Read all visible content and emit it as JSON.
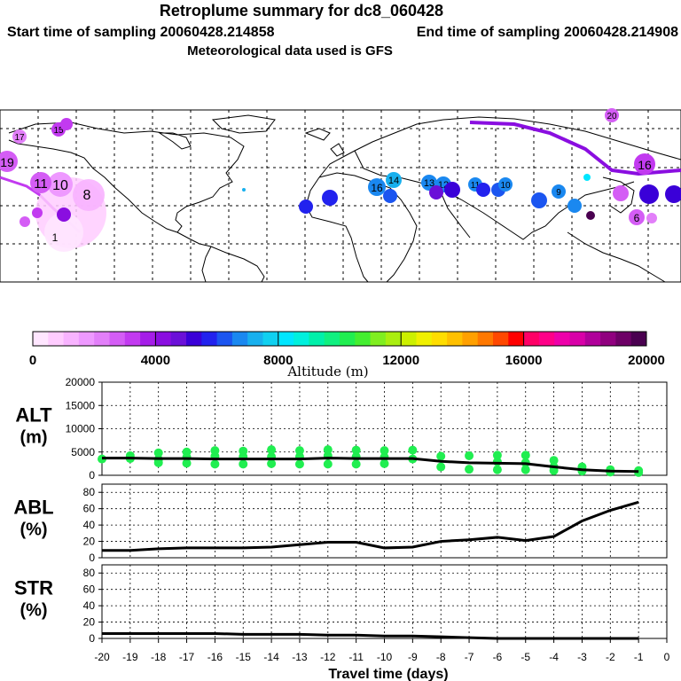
{
  "header": {
    "title": "Retroplume summary for dc8_060428",
    "start_time": "Start time of sampling 20060428.214858",
    "end_time": "End time of sampling 20060428.214908",
    "met_data": "Meteorological data used is GFS"
  },
  "colorbar": {
    "ticks": [
      "0",
      "4000",
      "8000",
      "12000",
      "16000",
      "20000"
    ],
    "label": "Altitude (m)",
    "colors": [
      "#ffe6ff",
      "#ffccff",
      "#f8b3ff",
      "#ee99ff",
      "#e27ff9",
      "#d45df5",
      "#c23af0",
      "#a51de8",
      "#8a0ee0",
      "#6b10d8",
      "#3a00d8",
      "#2222ee",
      "#1b55f0",
      "#1a88f0",
      "#18b0ee",
      "#10d0f0",
      "#00e6ff",
      "#00f0dd",
      "#00f0aa",
      "#10f080",
      "#20ee50",
      "#44ee30",
      "#80ee20",
      "#aaee10",
      "#ccf000",
      "#f0f000",
      "#ffdd00",
      "#ffc000",
      "#ffa000",
      "#ff7800",
      "#ff4800",
      "#ff0000",
      "#ff0066",
      "#ff0088",
      "#ee00aa",
      "#d800a8",
      "#b0009a",
      "#90007f",
      "#6d0066",
      "#4a0050"
    ]
  },
  "map_markers": [
    {
      "label": "19",
      "color": "#d45df5"
    },
    {
      "label": "17",
      "color": "#e27ff9"
    },
    {
      "label": "15",
      "color": "#c23af0"
    },
    {
      "label": "10",
      "color": "#ee99ff"
    },
    {
      "label": "11",
      "color": "#d45df5"
    },
    {
      "label": "8",
      "color": "#f8b3ff"
    },
    {
      "label": "1",
      "color": "#ffccff"
    },
    {
      "label": "16",
      "color": "#1b55f0"
    },
    {
      "label": "14",
      "color": "#1a88f0"
    },
    {
      "label": "13",
      "color": "#1a88f0"
    },
    {
      "label": "12",
      "color": "#1a88f0"
    },
    {
      "label": "11",
      "color": "#1a88f0"
    },
    {
      "label": "10",
      "color": "#1a88f0"
    },
    {
      "label": "9",
      "color": "#1a88f0"
    },
    {
      "label": "20",
      "color": "#d45df5"
    },
    {
      "label": "16",
      "color": "#c23af0"
    },
    {
      "label": "6",
      "color": "#d45df5"
    }
  ],
  "chart_data": [
    {
      "type": "scatter+line",
      "panel": "ALT",
      "ylabel": "ALT\n(m)",
      "xlabel": "Travel time (days)",
      "xlim": [
        -20,
        0
      ],
      "ylim": [
        0,
        20000
      ],
      "yticks": [
        "20000",
        "15000",
        "10000",
        "5000",
        "0"
      ],
      "xticks": [
        "-20",
        "-19",
        "-18",
        "-17",
        "-16",
        "-15",
        "-14",
        "-13",
        "-12",
        "-11",
        "-10",
        "-9",
        "-8",
        "-7",
        "-6",
        "-5",
        "-4",
        "-3",
        "-2",
        "-1",
        "0"
      ],
      "line": {
        "x": [
          -20,
          -19,
          -18,
          -17,
          -16,
          -15,
          -14,
          -13,
          -12,
          -11,
          -10,
          -9,
          -8,
          -7,
          -6,
          -5,
          -4,
          -3,
          -2,
          -1
        ],
        "y": [
          3700,
          3700,
          3600,
          3600,
          3500,
          3500,
          3500,
          3500,
          3700,
          3600,
          3600,
          3600,
          3000,
          2700,
          2600,
          2500,
          1800,
          1200,
          900,
          800
        ]
      },
      "scatter_color": "#20ee50",
      "scatter": [
        [
          -20,
          3500
        ],
        [
          -19,
          4200
        ],
        [
          -19,
          3600
        ],
        [
          -18,
          4800
        ],
        [
          -18,
          3400
        ],
        [
          -18,
          2700
        ],
        [
          -17,
          5000
        ],
        [
          -17,
          3900
        ],
        [
          -17,
          2600
        ],
        [
          -16,
          5300
        ],
        [
          -16,
          4100
        ],
        [
          -16,
          2400
        ],
        [
          -15,
          5200
        ],
        [
          -15,
          4000
        ],
        [
          -15,
          2400
        ],
        [
          -14,
          5500
        ],
        [
          -14,
          4000
        ],
        [
          -14,
          2500
        ],
        [
          -13,
          5300
        ],
        [
          -13,
          4000
        ],
        [
          -13,
          2400
        ],
        [
          -12,
          5500
        ],
        [
          -12,
          4200
        ],
        [
          -12,
          2400
        ],
        [
          -11,
          5400
        ],
        [
          -11,
          4000
        ],
        [
          -11,
          2400
        ],
        [
          -10,
          5300
        ],
        [
          -10,
          3900
        ],
        [
          -10,
          2500
        ],
        [
          -9,
          5400
        ],
        [
          -9,
          3500
        ],
        [
          -8,
          4100
        ],
        [
          -8,
          1800
        ],
        [
          -7,
          4200
        ],
        [
          -7,
          1300
        ],
        [
          -6,
          4300
        ],
        [
          -6,
          2900
        ],
        [
          -6,
          1200
        ],
        [
          -5,
          4300
        ],
        [
          -5,
          2700
        ],
        [
          -5,
          1200
        ],
        [
          -4,
          3200
        ],
        [
          -4,
          1800
        ],
        [
          -4,
          1000
        ],
        [
          -3,
          1800
        ],
        [
          -3,
          900
        ],
        [
          -2,
          1200
        ],
        [
          -2,
          700
        ],
        [
          -1,
          1000
        ],
        [
          -1,
          600
        ]
      ]
    },
    {
      "type": "line",
      "panel": "ABL",
      "ylabel": "ABL\n(%)",
      "xlim": [
        -20,
        0
      ],
      "ylim": [
        0,
        90
      ],
      "yticks": [
        "80",
        "60",
        "40",
        "20",
        "0"
      ],
      "x": [
        -20,
        -19,
        -18,
        -17,
        -16,
        -15,
        -14,
        -13,
        -12,
        -11,
        -10,
        -9,
        -8,
        -7,
        -6,
        -5,
        -4,
        -3,
        -2,
        -1
      ],
      "y": [
        9,
        9,
        11,
        12,
        12,
        12,
        13,
        16,
        19,
        19,
        12,
        13,
        20,
        22,
        25,
        21,
        26,
        45,
        58,
        68
      ]
    },
    {
      "type": "line",
      "panel": "STR",
      "ylabel": "STR\n(%)",
      "xlim": [
        -20,
        0
      ],
      "ylim": [
        0,
        90
      ],
      "yticks": [
        "80",
        "60",
        "40",
        "20",
        "0"
      ],
      "x": [
        -20,
        -19,
        -18,
        -17,
        -16,
        -15,
        -14,
        -13,
        -12,
        -11,
        -10,
        -9,
        -8,
        -7,
        -6,
        -5,
        -4,
        -3,
        -2,
        -1
      ],
      "y": [
        6,
        6,
        6,
        6,
        6,
        5,
        5,
        5,
        4,
        4,
        3,
        3,
        2,
        1,
        0,
        0,
        0,
        0,
        0,
        0
      ]
    }
  ]
}
